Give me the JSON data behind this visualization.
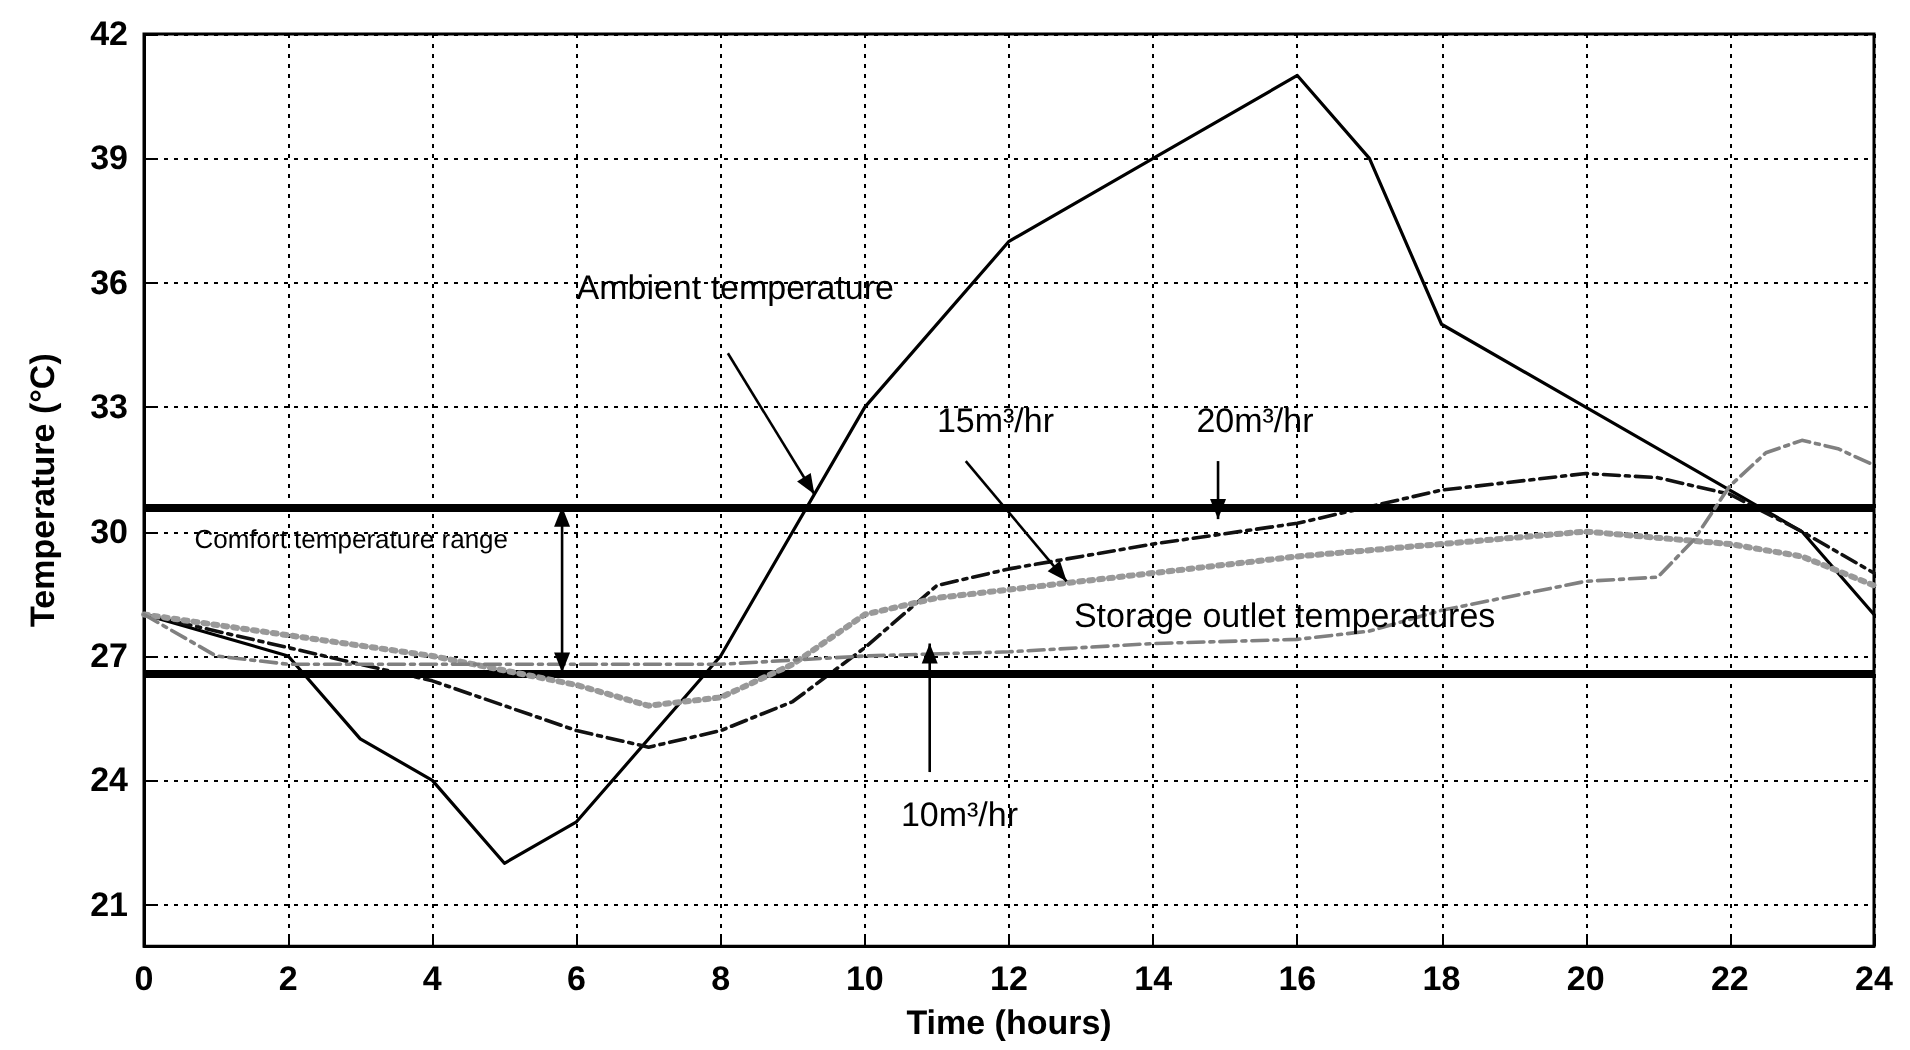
{
  "chart_data": {
    "type": "line",
    "xlabel": "Time (hours)",
    "ylabel": "Temperature (°C)",
    "xlim": [
      0,
      24
    ],
    "xticks": [
      0,
      2,
      4,
      6,
      8,
      10,
      12,
      14,
      16,
      18,
      20,
      22,
      24
    ],
    "ylim": [
      20,
      42
    ],
    "yticks": [
      21,
      24,
      27,
      30,
      33,
      36,
      39,
      42
    ],
    "grid": true,
    "legend": false,
    "marker": "none",
    "annotations": [
      "Comfort temperature range",
      "Storage outlet temperatures"
    ],
    "ref_lines": [
      {
        "axis": "y",
        "value": 30.6,
        "color": "#000000"
      },
      {
        "axis": "y",
        "value": 26.6,
        "color": "#000000"
      }
    ],
    "series": [
      {
        "name": "Ambient temperature",
        "color": "#000000",
        "line_style": "solid",
        "x": [
          0,
          2,
          3,
          4,
          5,
          6,
          8,
          10,
          12,
          14,
          16,
          17,
          18,
          20,
          22,
          23,
          24
        ],
        "values": [
          28,
          27,
          25,
          24,
          22,
          23,
          27,
          33,
          37,
          39,
          41,
          39,
          35,
          33,
          31,
          30,
          28
        ]
      },
      {
        "name": "20m³/hr",
        "color": "#111111",
        "line_style": "dashed",
        "x": [
          0,
          2,
          4,
          6,
          7,
          8,
          9,
          10,
          11,
          12,
          14,
          16,
          18,
          20,
          21,
          22,
          23,
          24
        ],
        "values": [
          28,
          27.2,
          26.4,
          25.2,
          24.8,
          25.2,
          25.9,
          27.2,
          28.7,
          29.1,
          29.7,
          30.2,
          31,
          31.4,
          31.3,
          30.9,
          30,
          29
        ]
      },
      {
        "name": "15m³/hr",
        "color": "#999999",
        "line_style": "dotted",
        "x": [
          0,
          2,
          4,
          6,
          7,
          8,
          9,
          10,
          11,
          12,
          14,
          16,
          18,
          20,
          22,
          23,
          24
        ],
        "values": [
          28,
          27.5,
          27,
          26.3,
          25.8,
          26,
          26.8,
          28,
          28.4,
          28.6,
          29,
          29.4,
          29.7,
          30,
          29.7,
          29.4,
          28.7
        ]
      },
      {
        "name": "10m³/hr",
        "color": "#808080",
        "line_style": "dashed",
        "x": [
          0,
          1,
          2,
          4,
          6,
          8,
          10,
          12,
          14,
          16,
          17,
          18,
          20,
          21,
          21.5,
          22,
          22.5,
          23,
          23.5,
          24
        ],
        "values": [
          28,
          27,
          26.8,
          26.8,
          26.8,
          26.8,
          27,
          27.1,
          27.3,
          27.4,
          27.6,
          28.1,
          28.8,
          28.9,
          29.8,
          31.1,
          31.9,
          32.2,
          32,
          31.6
        ]
      }
    ]
  }
}
